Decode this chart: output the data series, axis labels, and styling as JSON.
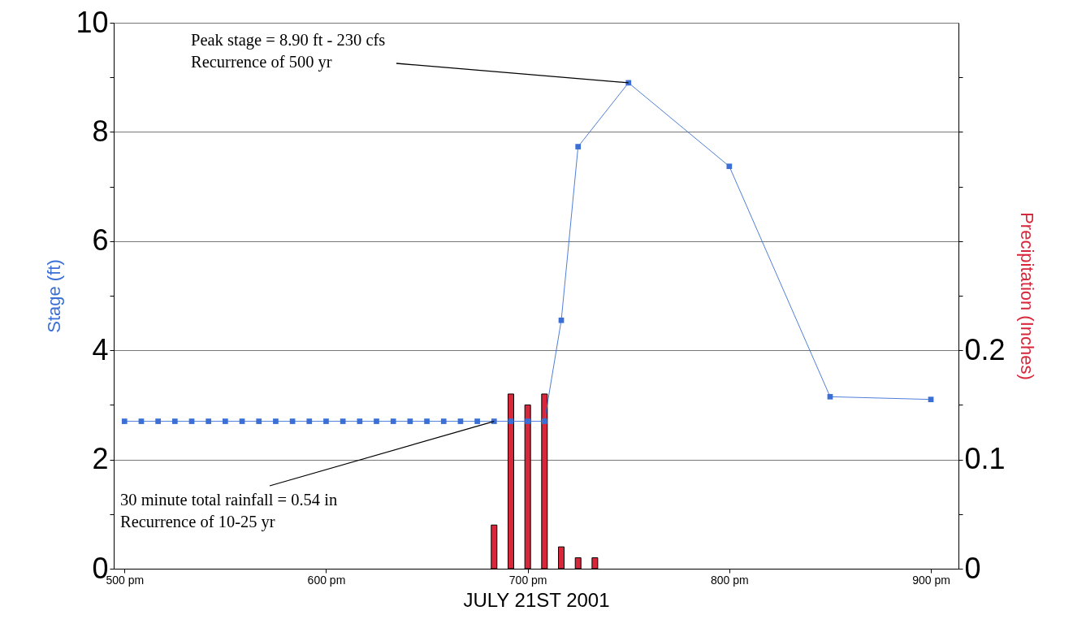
{
  "chart_data": {
    "type": "line",
    "xlabel": "JULY 21ST 2001",
    "ylabel": "Stage (ft)",
    "y2label": "Precipitation (Inches)",
    "xlim": [
      "2001-07-21T16:58",
      "2001-07-21T21:07"
    ],
    "xticks": [
      {
        "value": "2001-07-21T17:00",
        "label": "500 pm"
      },
      {
        "value": "2001-07-21T18:00",
        "label": "600 pm"
      },
      {
        "value": "2001-07-21T19:00",
        "label": "700 pm"
      },
      {
        "value": "2001-07-21T20:00",
        "label": "800 pm"
      },
      {
        "value": "2001-07-21T21:00",
        "label": "900 pm"
      }
    ],
    "ylim": [
      0,
      10
    ],
    "yticks": [
      0,
      {
        "value": 1,
        "label": null
      },
      2,
      {
        "value": 3,
        "label": null
      },
      4,
      {
        "value": 5,
        "label": null
      },
      6,
      {
        "value": 7,
        "label": null
      },
      8,
      {
        "value": 9,
        "label": null
      },
      10
    ],
    "y2lim": [
      0,
      0.5
    ],
    "y2ticks": [
      0,
      {
        "value": 0.05,
        "label": null
      },
      0.1,
      {
        "value": 0.15,
        "label": null
      },
      0.2,
      {
        "value": 0.25,
        "label": null
      },
      {
        "value": 0.3,
        "label": null
      },
      {
        "value": 0.35,
        "label": null
      },
      {
        "value": 0.4,
        "label": null
      },
      {
        "value": 0.45,
        "label": null
      }
    ],
    "grid": "y",
    "marker": "square",
    "series": [
      {
        "color": "#3b6fd6",
        "x": [
          "2001-07-21T17:00",
          "2001-07-21T17:05",
          "2001-07-21T17:10",
          "2001-07-21T17:15",
          "2001-07-21T17:20",
          "2001-07-21T17:25",
          "2001-07-21T17:30",
          "2001-07-21T17:35",
          "2001-07-21T17:40",
          "2001-07-21T17:45",
          "2001-07-21T17:50",
          "2001-07-21T17:55",
          "2001-07-21T18:00",
          "2001-07-21T18:05",
          "2001-07-21T18:10",
          "2001-07-21T18:15",
          "2001-07-21T18:20",
          "2001-07-21T18:25",
          "2001-07-21T18:30",
          "2001-07-21T18:35",
          "2001-07-21T18:40",
          "2001-07-21T18:45",
          "2001-07-21T18:50",
          "2001-07-21T18:55",
          "2001-07-21T19:00",
          "2001-07-21T19:05",
          "2001-07-21T19:10",
          "2001-07-21T19:15",
          "2001-07-21T19:30",
          "2001-07-21T20:00",
          "2001-07-21T20:30",
          "2001-07-21T21:00"
        ],
        "values": [
          2.7,
          2.7,
          2.7,
          2.7,
          2.7,
          2.7,
          2.7,
          2.7,
          2.7,
          2.7,
          2.7,
          2.7,
          2.7,
          2.7,
          2.7,
          2.7,
          2.7,
          2.7,
          2.7,
          2.7,
          2.7,
          2.7,
          2.7,
          2.7,
          2.7,
          2.7,
          4.55,
          7.73,
          8.9,
          7.37,
          3.15,
          3.1
        ]
      },
      {
        "type": "bar",
        "axis": "y2",
        "color": "#d8263a",
        "x": [
          "2001-07-21T18:50",
          "2001-07-21T18:55",
          "2001-07-21T19:00",
          "2001-07-21T19:05",
          "2001-07-21T19:10",
          "2001-07-21T19:15",
          "2001-07-21T19:20"
        ],
        "values": [
          0.04,
          0.16,
          0.15,
          0.16,
          0.02,
          0.01,
          0.01
        ]
      }
    ],
    "annotations": [
      {
        "text": "Peak stage = 8.90 ft - 230 cfs\nRecurrence of 500 yr",
        "x": "2001-07-21T19:30",
        "y": 8.9
      },
      {
        "text": "30 minute total rainfall = 0.54 in\nRecurrence of 10-25 yr",
        "x": "2001-07-21T18:50",
        "y": 2.7
      }
    ]
  }
}
